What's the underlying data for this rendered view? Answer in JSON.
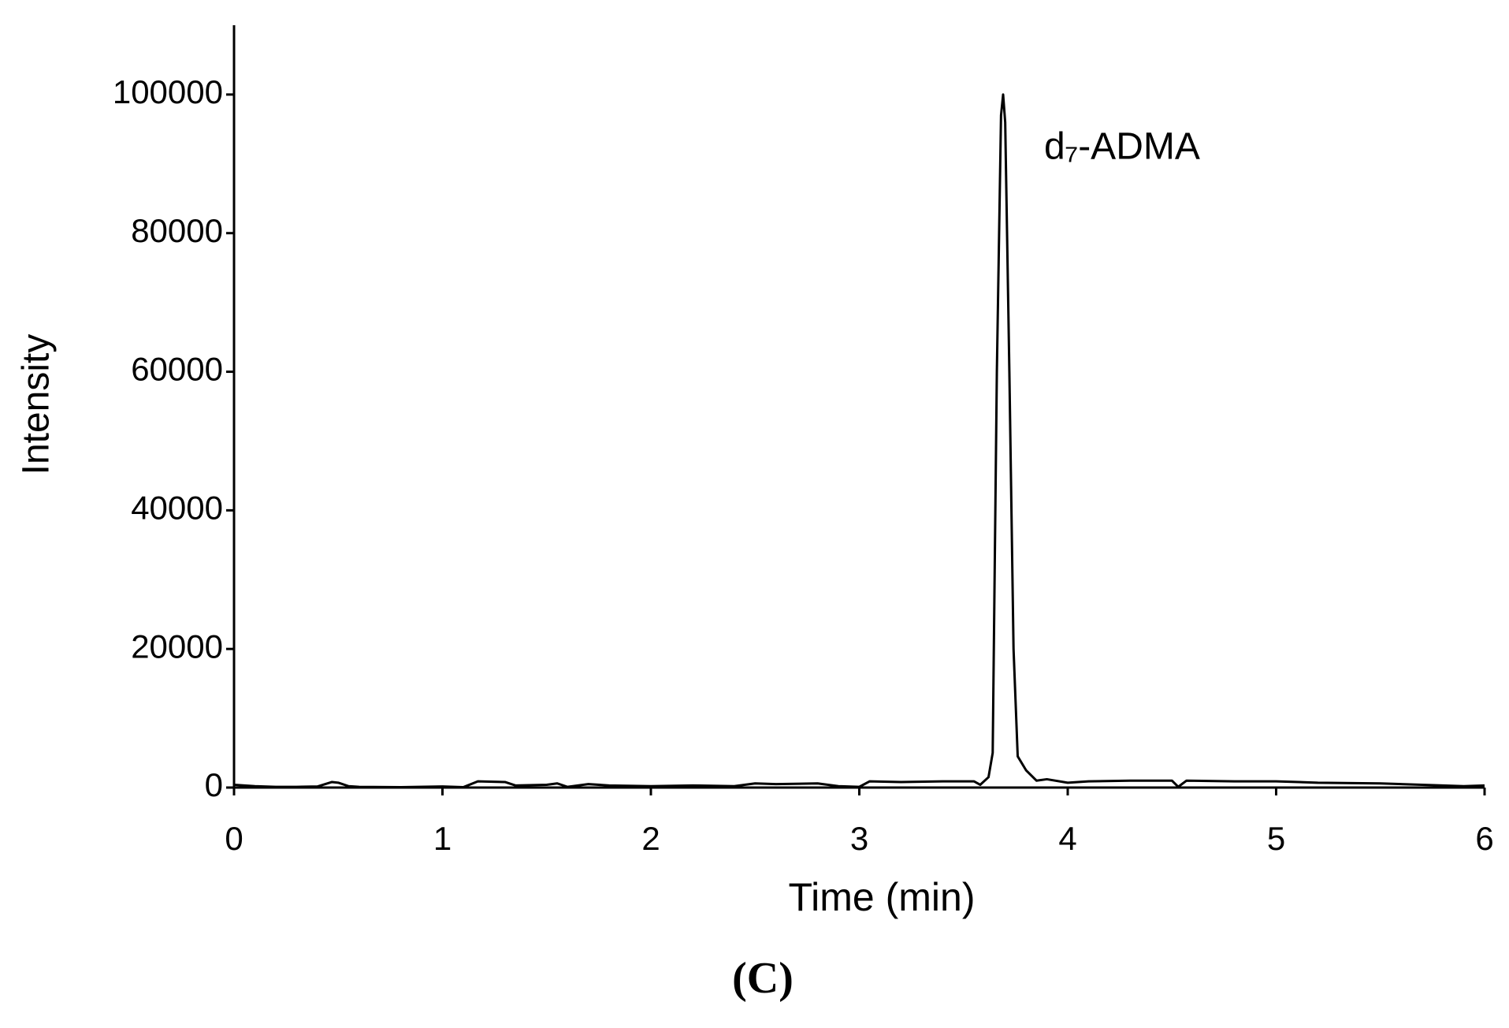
{
  "chart_data": {
    "type": "line",
    "xlabel": "Time (min)",
    "ylabel": "Intensity",
    "annotation": "d₇-ADMA",
    "panel_label": "(C)",
    "x": [
      0,
      0.05,
      0.1,
      0.2,
      0.3,
      0.4,
      0.47,
      0.5,
      0.55,
      0.6,
      0.8,
      1.0,
      1.1,
      1.17,
      1.3,
      1.35,
      1.5,
      1.55,
      1.6,
      1.7,
      1.8,
      2.0,
      2.2,
      2.4,
      2.5,
      2.6,
      2.8,
      2.9,
      3.0,
      3.05,
      3.2,
      3.4,
      3.55,
      3.58,
      3.62,
      3.64,
      3.66,
      3.68,
      3.69,
      3.7,
      3.72,
      3.74,
      3.76,
      3.8,
      3.85,
      3.9,
      4.0,
      4.1,
      4.3,
      4.5,
      4.53,
      4.57,
      4.8,
      5.0,
      5.2,
      5.5,
      5.7,
      5.8,
      5.9,
      6.0
    ],
    "series": [
      {
        "color": "#000000",
        "values": [
          400,
          300,
          200,
          100,
          100,
          150,
          800,
          700,
          200,
          100,
          50,
          150,
          50,
          900,
          800,
          300,
          400,
          600,
          100,
          500,
          300,
          200,
          300,
          200,
          600,
          500,
          600,
          200,
          100,
          900,
          800,
          900,
          900,
          400,
          1500,
          5000,
          60000,
          97000,
          100000,
          96000,
          60000,
          20000,
          4500,
          2500,
          1000,
          1200,
          700,
          900,
          1000,
          1000,
          100,
          1000,
          900,
          900,
          700,
          600,
          400,
          300,
          200,
          300
        ]
      }
    ],
    "xlim": [
      0,
      6
    ],
    "xticks": [
      0,
      1,
      2,
      3,
      4,
      5,
      6
    ],
    "ylim": [
      0,
      110000
    ],
    "yticks": [
      0,
      20000,
      40000,
      60000,
      80000,
      100000
    ]
  }
}
